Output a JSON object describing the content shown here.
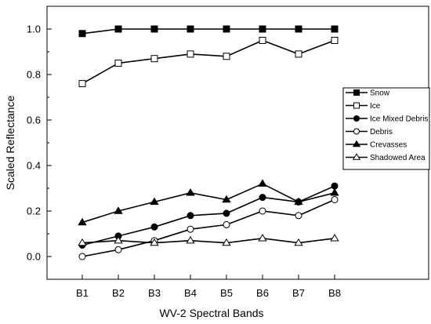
{
  "chart_data": {
    "type": "line",
    "xlabel": "WV-2 Spectral Bands",
    "ylabel": "Scaled Reflectance",
    "categories": [
      "B1",
      "B2",
      "B3",
      "B4",
      "B5",
      "B6",
      "B7",
      "B8"
    ],
    "yticks": [
      "0.0",
      "0.2",
      "0.4",
      "0.6",
      "0.8",
      "1.0"
    ],
    "ylim": [
      -0.1,
      1.1
    ],
    "grid": false,
    "legend_position": "right",
    "series": [
      {
        "name": "Snow",
        "marker": "square-filled",
        "values": [
          0.98,
          1.0,
          1.0,
          1.0,
          1.0,
          1.0,
          1.0,
          1.0
        ]
      },
      {
        "name": "Ice",
        "marker": "square-open",
        "values": [
          0.76,
          0.85,
          0.87,
          0.89,
          0.88,
          0.95,
          0.89,
          0.95
        ]
      },
      {
        "name": "Ice Mixed Debris",
        "marker": "circle-filled",
        "values": [
          0.05,
          0.09,
          0.13,
          0.18,
          0.19,
          0.26,
          0.24,
          0.31
        ]
      },
      {
        "name": "Debris",
        "marker": "circle-open",
        "values": [
          0.0,
          0.03,
          0.07,
          0.12,
          0.14,
          0.2,
          0.18,
          0.25
        ]
      },
      {
        "name": "Crevasses",
        "marker": "triangle-filled",
        "values": [
          0.15,
          0.2,
          0.24,
          0.28,
          0.25,
          0.32,
          0.24,
          0.28
        ]
      },
      {
        "name": "Shadowed Area",
        "marker": "triangle-open",
        "values": [
          0.06,
          0.07,
          0.06,
          0.07,
          0.06,
          0.08,
          0.06,
          0.08
        ]
      }
    ]
  }
}
